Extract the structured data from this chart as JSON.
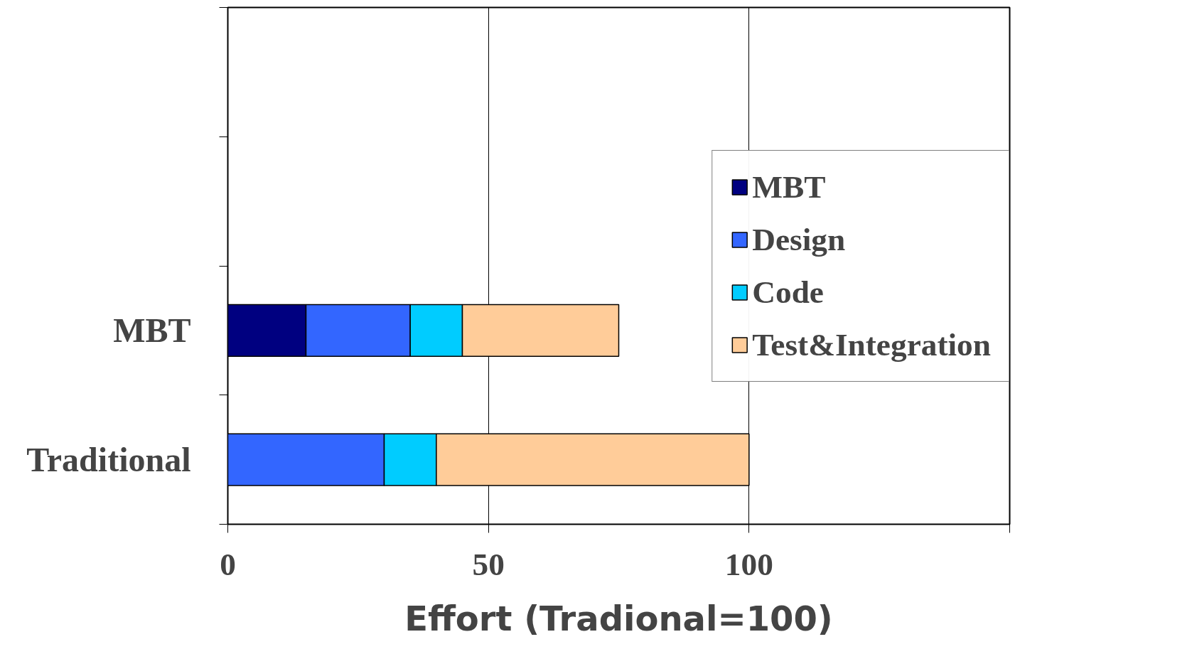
{
  "chart_data": {
    "type": "bar",
    "orientation": "horizontal",
    "stacked": true,
    "categories": [
      null,
      null,
      "MBT",
      "Traditional"
    ],
    "series": [
      {
        "name": "MBT",
        "color": "#000080",
        "values": [
          null,
          null,
          15,
          null
        ]
      },
      {
        "name": "Design",
        "color": "#3366ff",
        "values": [
          null,
          null,
          20,
          30
        ]
      },
      {
        "name": "Code",
        "color": "#00ccff",
        "values": [
          null,
          null,
          10,
          10
        ]
      },
      {
        "name": "Test&Integration",
        "color": "#ffcc99",
        "values": [
          null,
          null,
          30,
          60
        ]
      }
    ],
    "xlabel": "Effort (Tradional=100)",
    "xlim": [
      0,
      150
    ],
    "xticks": [
      0,
      50,
      100,
      {
        "value": 150,
        "label": null
      }
    ],
    "grid": "x",
    "legend": "right"
  }
}
